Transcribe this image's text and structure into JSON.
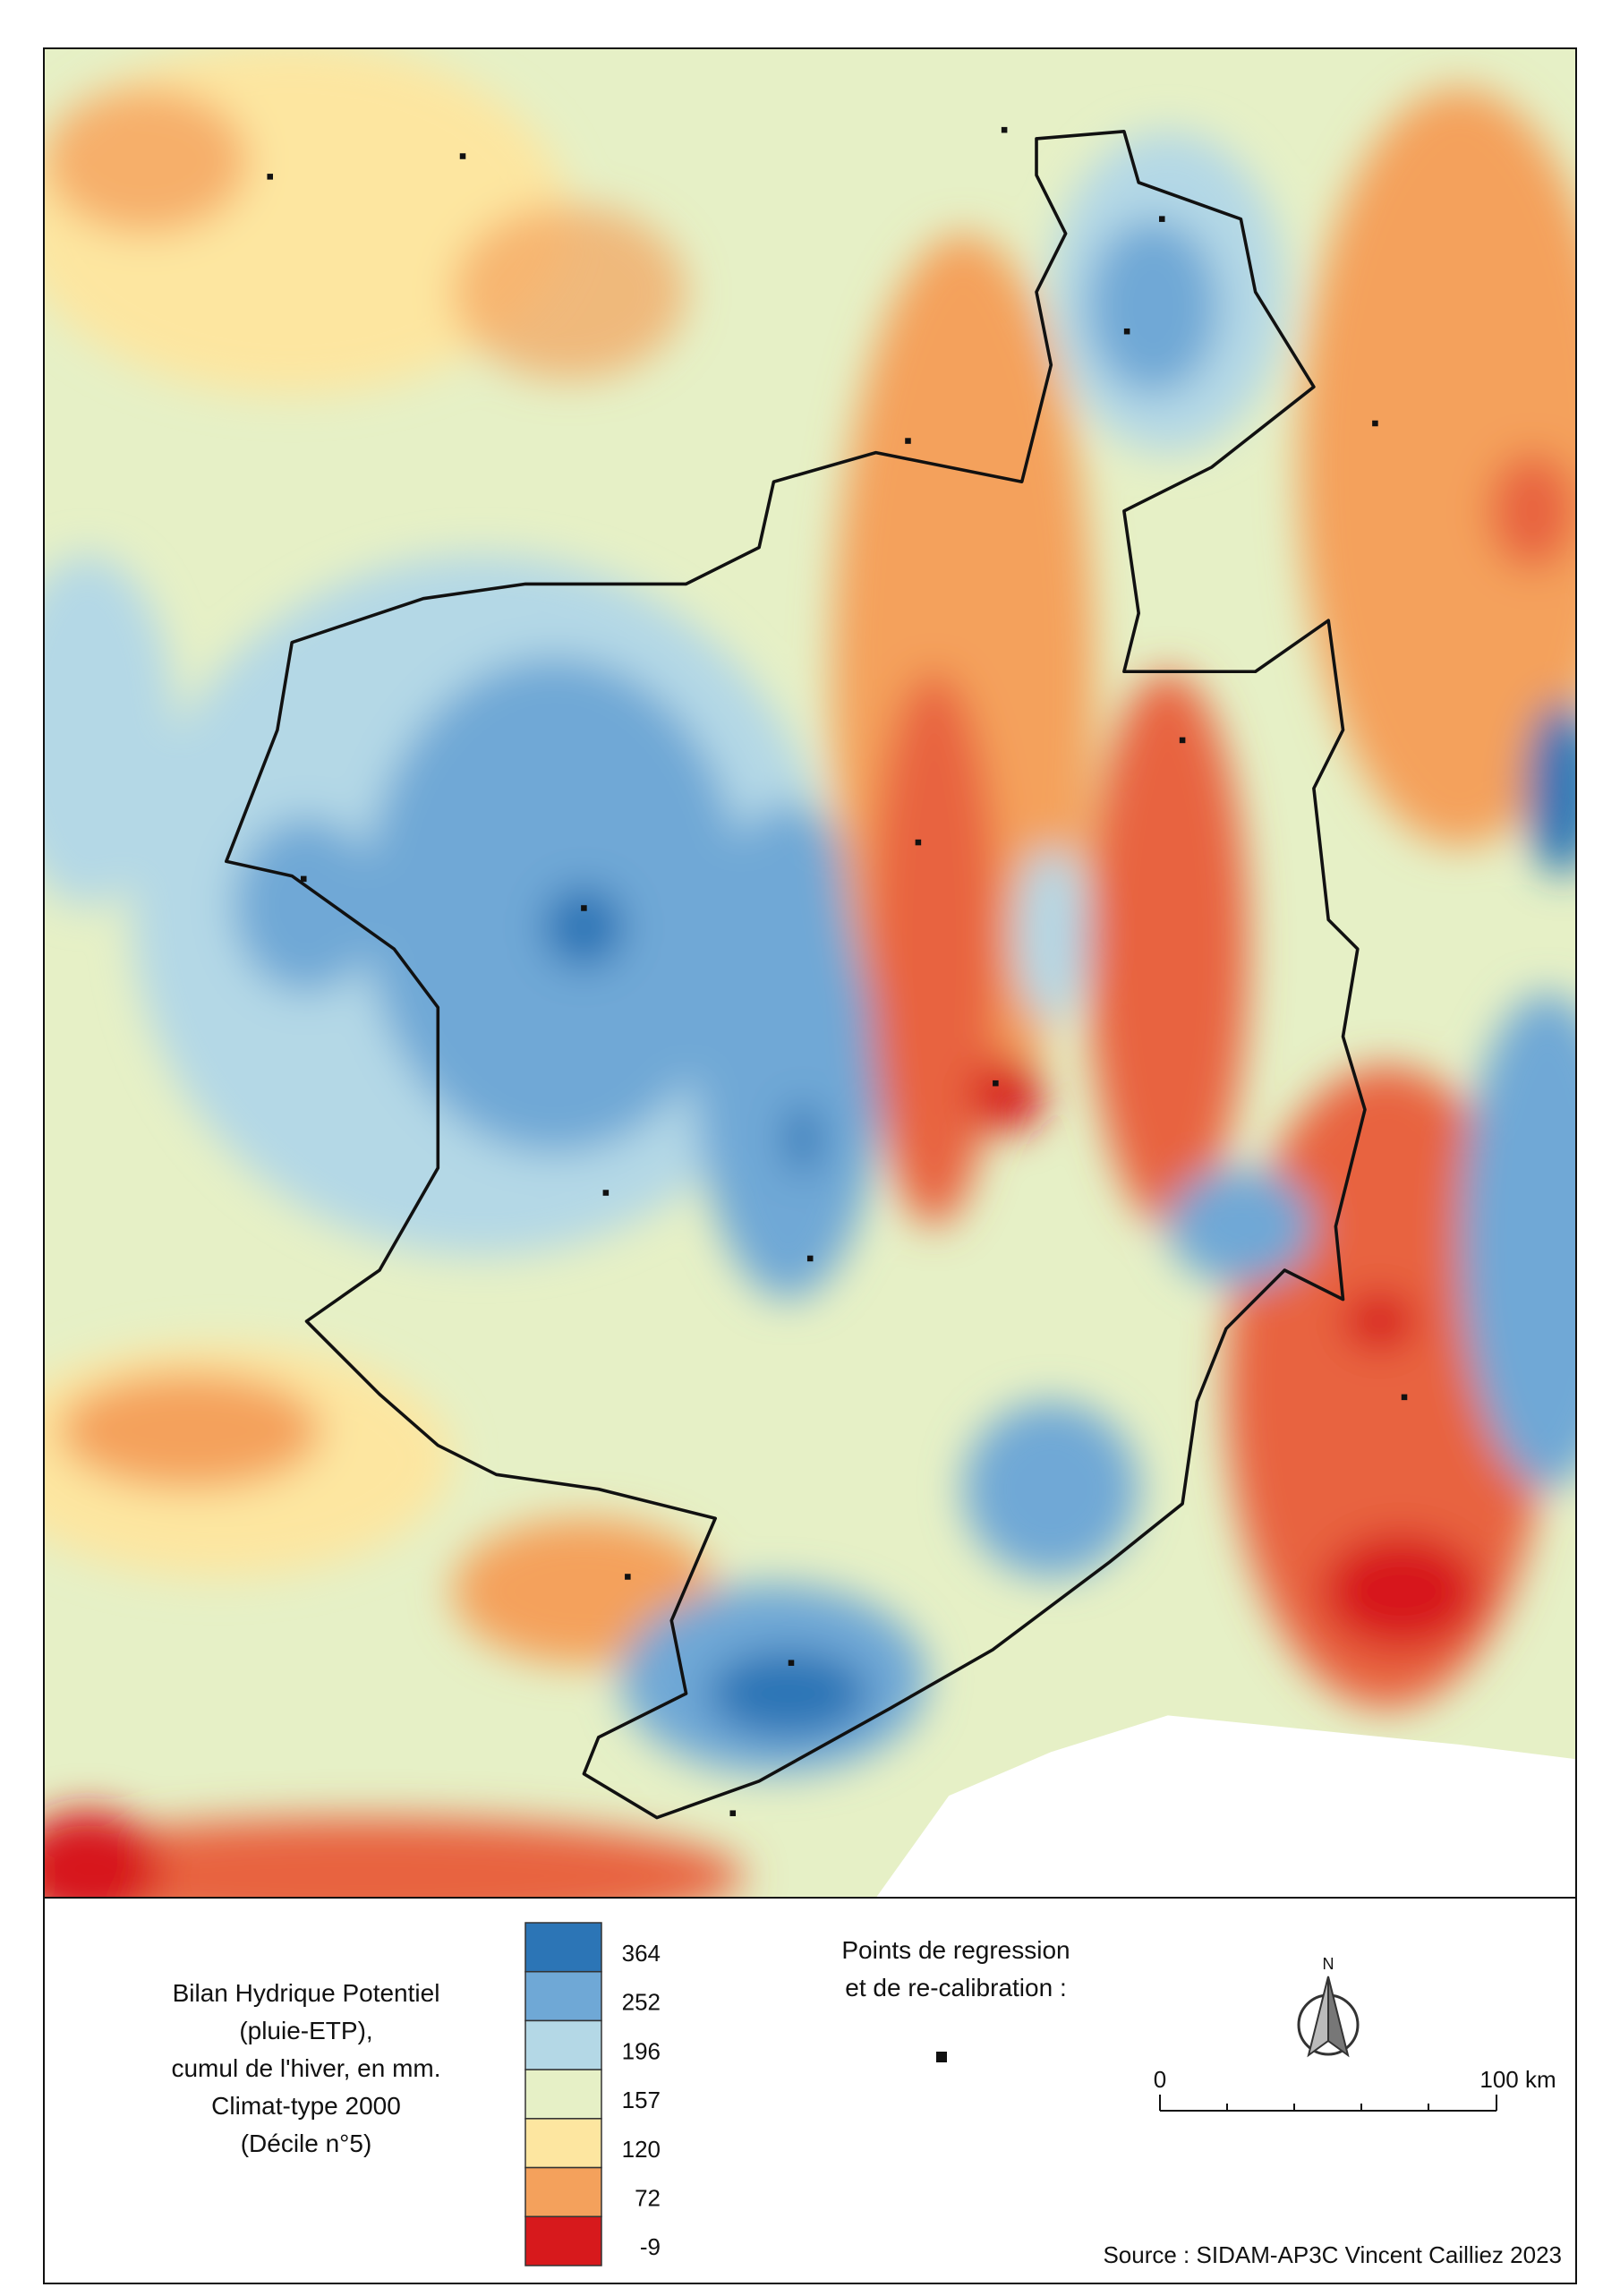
{
  "legend": {
    "title_lines": [
      "Bilan Hydrique Potentiel",
      "(pluie-ETP),",
      "cumul de l'hiver, en mm.",
      "Climat-type 2000",
      "(Décile n°5)"
    ],
    "classes": [
      {
        "label": "364",
        "color": "#2c75b6"
      },
      {
        "label": "252",
        "color": "#6fa8d6"
      },
      {
        "label": "196",
        "color": "#b4d8e6"
      },
      {
        "label": "157",
        "color": "#e6f0c6"
      },
      {
        "label": "120",
        "color": "#fde6a0"
      },
      {
        "label": "72",
        "color": "#f4a15c"
      },
      {
        "label": "-9",
        "color": "#d7191c"
      }
    ]
  },
  "points_legend": {
    "lines": [
      "Points de regression",
      "et de re-calibration :"
    ]
  },
  "north": "N",
  "scale_bar": {
    "start": "0",
    "end": "100 km"
  },
  "source": "Source : SIDAM-AP3C Vincent Cailliez 2023"
}
